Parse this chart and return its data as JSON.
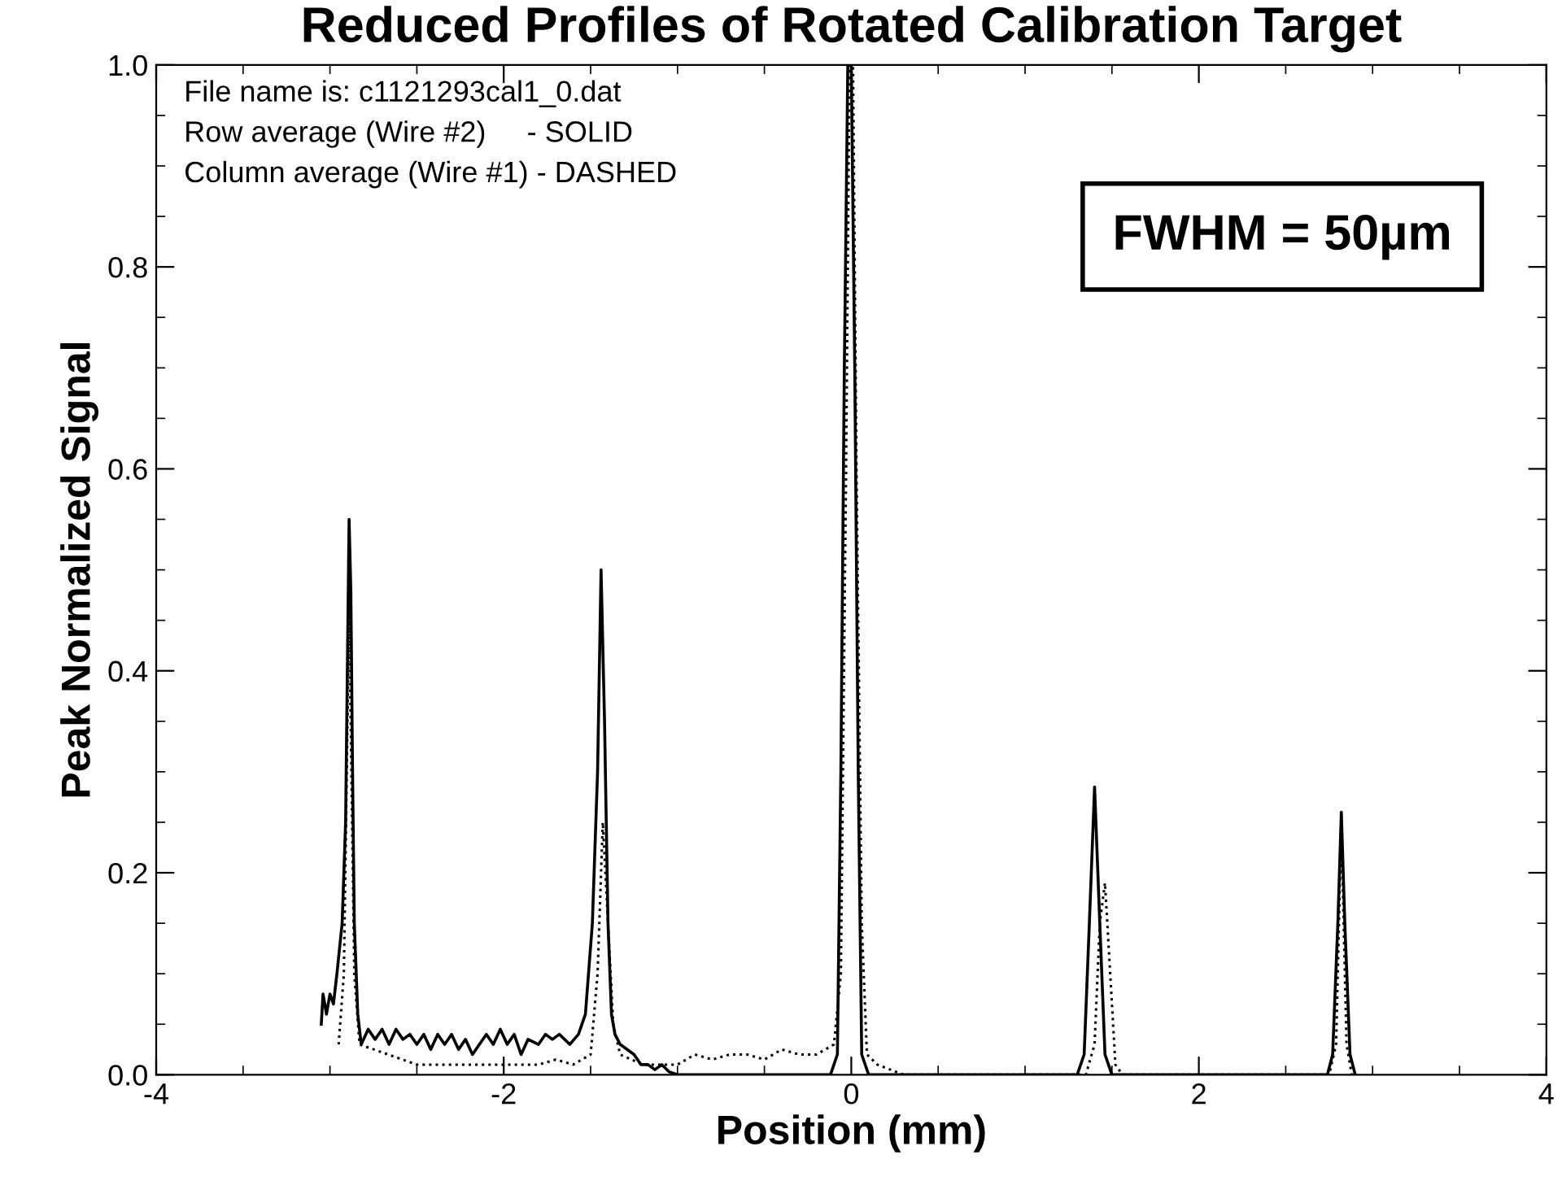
{
  "chart_data": {
    "type": "line",
    "title": "Reduced Profiles of Rotated Calibration Target",
    "xlabel": "Position (mm)",
    "ylabel": "Peak Normalized Signal",
    "xlim": [
      -4,
      4
    ],
    "xticks": [
      {
        "value": -4,
        "label": "-4"
      },
      {
        "value": -2,
        "label": "-2"
      },
      0,
      2,
      4
    ],
    "ylim": [
      0,
      1.0
    ],
    "yticks": [
      {
        "value": 0,
        "label": "0.0"
      },
      0.2,
      0.4,
      0.6,
      0.8,
      {
        "value": 1.0,
        "label": "1.0"
      }
    ],
    "marker": "none",
    "annotations": [
      "File name is: c1121293cal1_0.dat",
      "Row average (Wire #2)     - SOLID",
      "Column average (Wire #1) - DASHED",
      "FWHM = 50µm"
    ],
    "series": [
      {
        "color": "#000000",
        "line_style": "solid",
        "x": [
          -3.05,
          -3.04,
          -3.02,
          -3.0,
          -2.98,
          -2.96,
          -2.93,
          -2.91,
          -2.9,
          -2.89,
          -2.88,
          -2.87,
          -2.86,
          -2.84,
          -2.82,
          -2.78,
          -2.74,
          -2.7,
          -2.66,
          -2.62,
          -2.58,
          -2.54,
          -2.5,
          -2.46,
          -2.42,
          -2.38,
          -2.34,
          -2.3,
          -2.26,
          -2.22,
          -2.18,
          -2.14,
          -2.1,
          -2.06,
          -2.02,
          -1.98,
          -1.94,
          -1.9,
          -1.86,
          -1.8,
          -1.76,
          -1.72,
          -1.68,
          -1.62,
          -1.57,
          -1.53,
          -1.49,
          -1.46,
          -1.44,
          -1.42,
          -1.4,
          -1.38,
          -1.36,
          -1.33,
          -1.29,
          -1.25,
          -1.21,
          -1.17,
          -1.13,
          -1.09,
          -1.05,
          -1.0,
          -0.6,
          -0.12,
          -0.08,
          -0.06,
          -0.04,
          -0.02,
          0.0,
          0.02,
          0.04,
          0.06,
          0.1,
          1.3,
          1.34,
          1.37,
          1.4,
          1.43,
          1.46,
          1.5,
          2.74,
          2.77,
          2.8,
          2.82,
          2.84,
          2.87,
          2.9
        ],
        "values": [
          0.05,
          0.08,
          0.06,
          0.08,
          0.07,
          0.1,
          0.15,
          0.25,
          0.4,
          0.55,
          0.48,
          0.3,
          0.15,
          0.06,
          0.03,
          0.045,
          0.035,
          0.045,
          0.03,
          0.045,
          0.035,
          0.04,
          0.03,
          0.04,
          0.025,
          0.04,
          0.03,
          0.04,
          0.025,
          0.035,
          0.02,
          0.03,
          0.04,
          0.03,
          0.045,
          0.03,
          0.04,
          0.02,
          0.035,
          0.03,
          0.04,
          0.035,
          0.04,
          0.03,
          0.04,
          0.06,
          0.15,
          0.3,
          0.5,
          0.35,
          0.15,
          0.06,
          0.04,
          0.03,
          0.025,
          0.02,
          0.01,
          0.01,
          0.005,
          0.01,
          0.003,
          0,
          0,
          0,
          0.02,
          0.3,
          0.7,
          1.0,
          1.0,
          0.7,
          0.3,
          0.02,
          0,
          0,
          0.02,
          0.15,
          0.285,
          0.15,
          0.02,
          0,
          0,
          0.02,
          0.15,
          0.26,
          0.15,
          0.02,
          0
        ]
      },
      {
        "color": "#000000",
        "line_style": "dotted",
        "x": [
          -2.95,
          -2.92,
          -2.89,
          -2.86,
          -2.83,
          -2.5,
          -2.0,
          -1.8,
          -1.7,
          -1.6,
          -1.55,
          -1.5,
          -1.46,
          -1.43,
          -1.4,
          -1.37,
          -1.33,
          -1.2,
          -1.0,
          -0.9,
          -0.8,
          -0.7,
          -0.6,
          -0.5,
          -0.4,
          -0.3,
          -0.2,
          -0.1,
          -0.06,
          -0.03,
          -0.01,
          0.01,
          0.03,
          0.06,
          0.09,
          0.15,
          0.3,
          1.35,
          1.4,
          1.43,
          1.46,
          1.49,
          1.52,
          1.56,
          2.75,
          2.79,
          2.82,
          2.85,
          2.88
        ],
        "values": [
          0.03,
          0.1,
          0.46,
          0.1,
          0.03,
          0.01,
          0.01,
          0.01,
          0.015,
          0.01,
          0.015,
          0.02,
          0.1,
          0.25,
          0.15,
          0.05,
          0.02,
          0.01,
          0.01,
          0.02,
          0.015,
          0.02,
          0.02,
          0.015,
          0.025,
          0.02,
          0.02,
          0.03,
          0.1,
          0.6,
          1.0,
          1.0,
          0.6,
          0.15,
          0.02,
          0.01,
          0,
          0,
          0.03,
          0.15,
          0.19,
          0.1,
          0.01,
          0,
          0,
          0.03,
          0.25,
          0.03,
          0
        ]
      }
    ]
  }
}
